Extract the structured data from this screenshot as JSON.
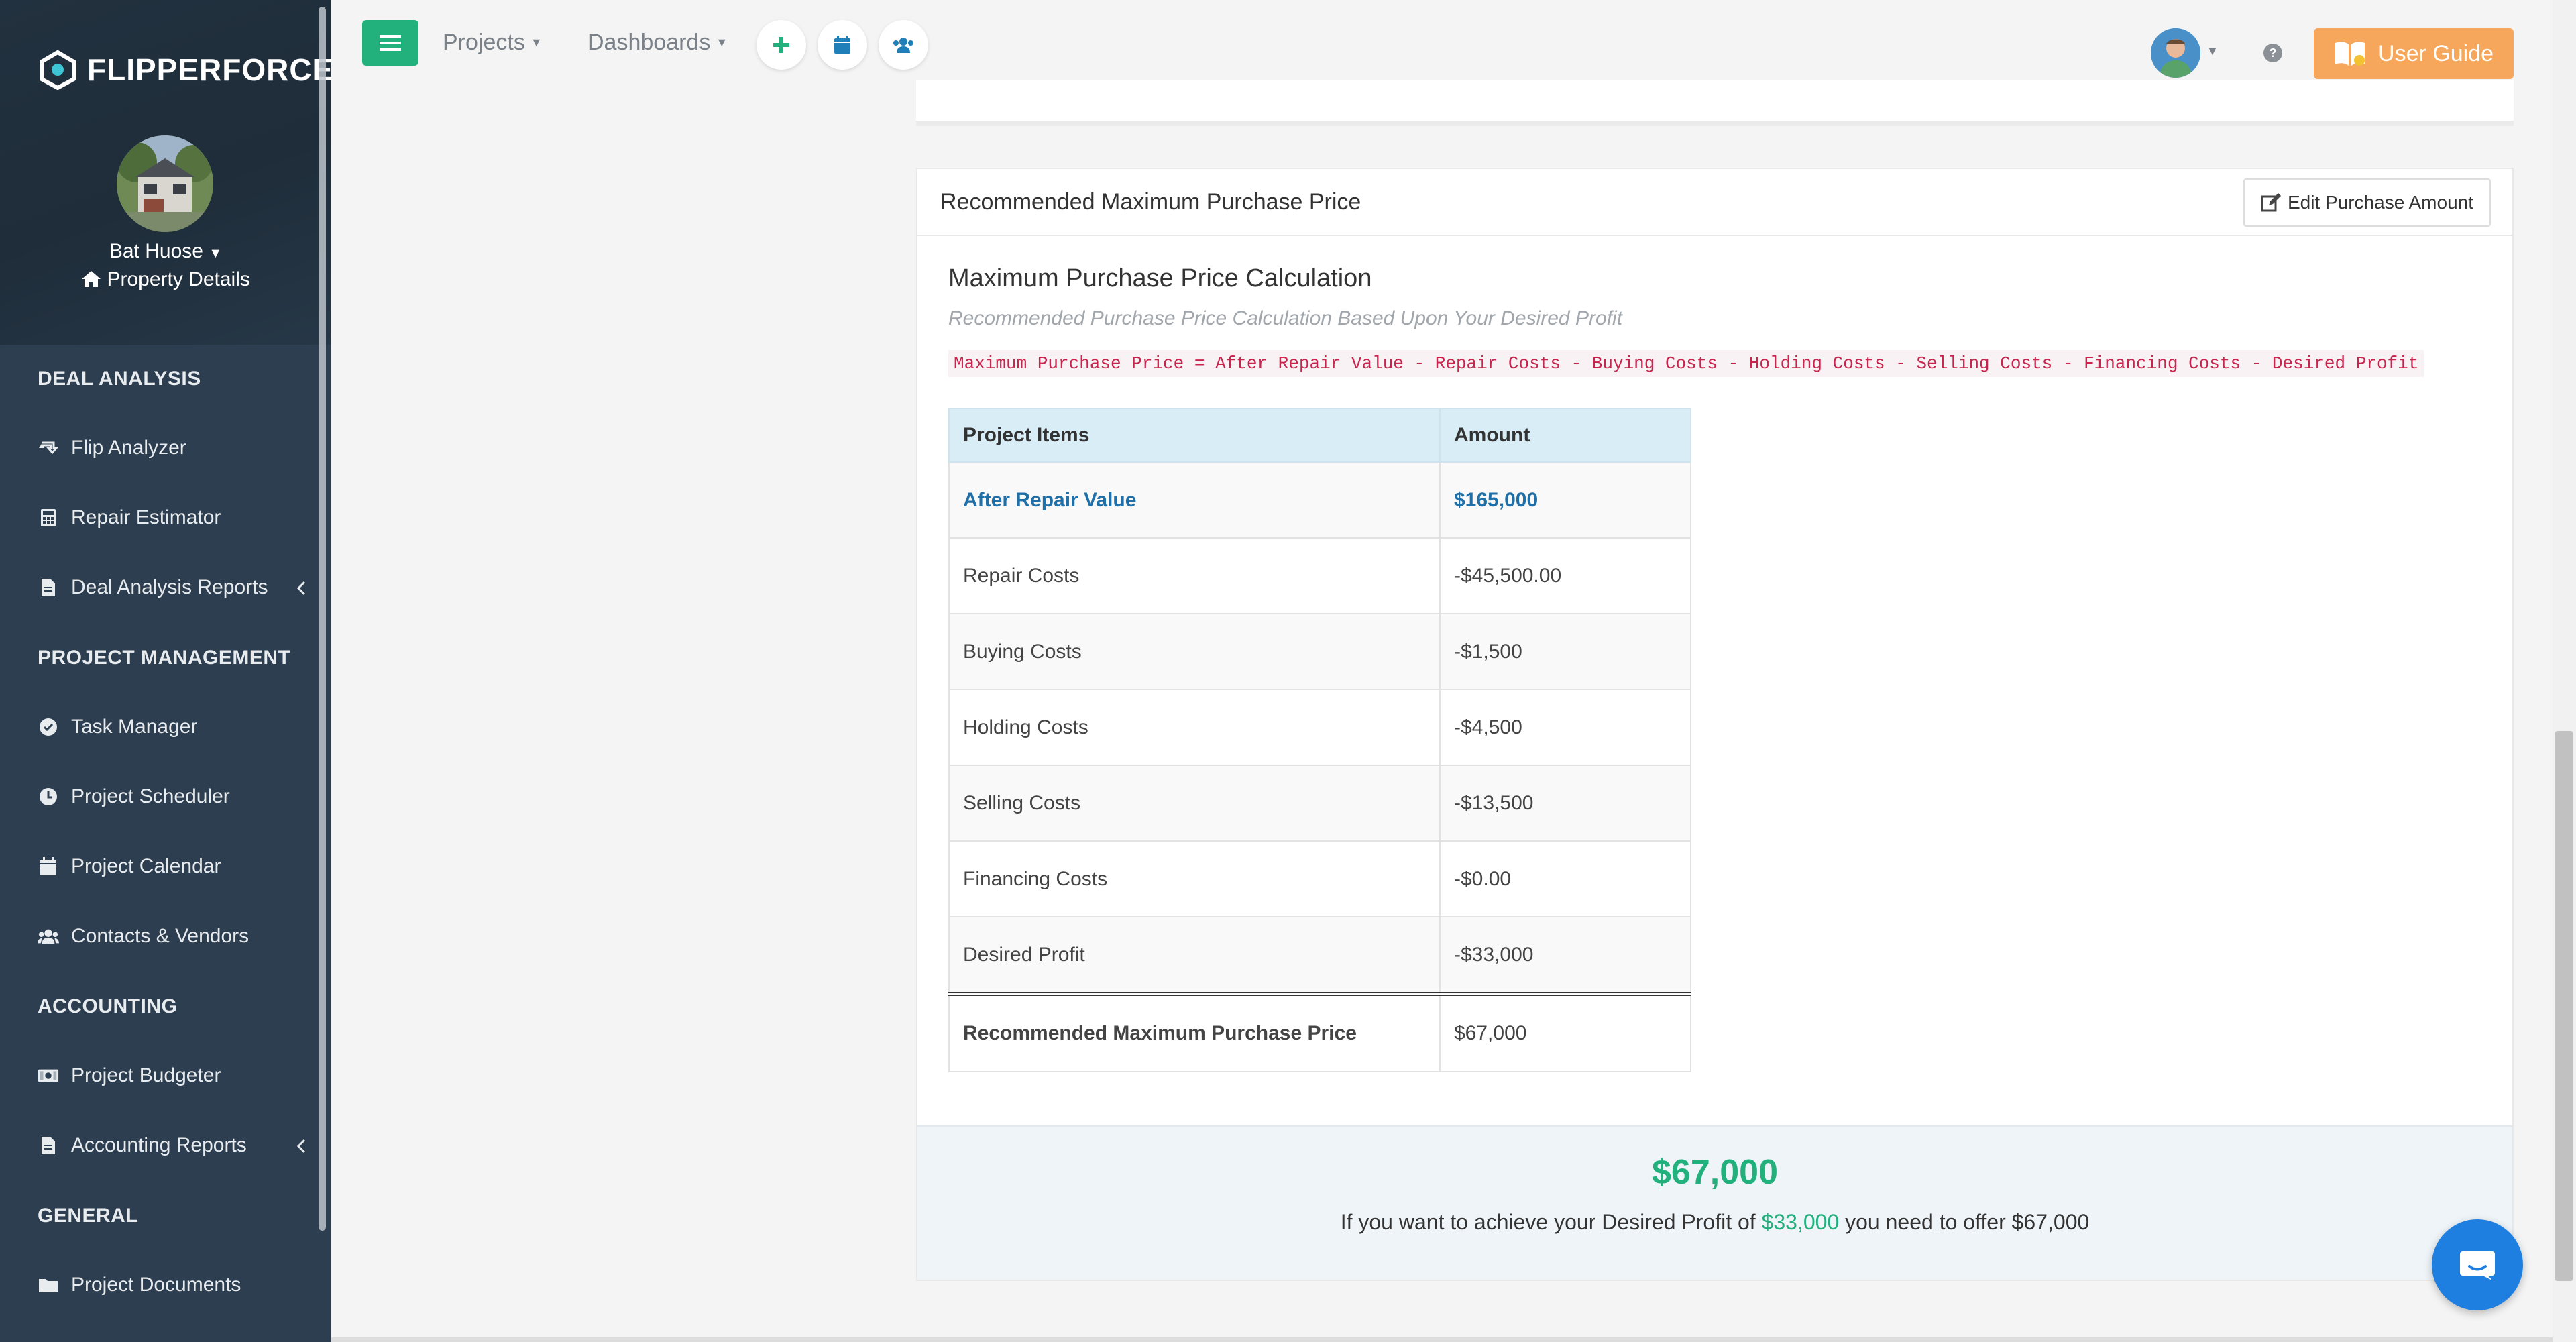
{
  "sidebar": {
    "brand": "FLIPPERFORCE",
    "property_name": "Bat Huose",
    "property_link": "Property Details",
    "sections": [
      {
        "title": "DEAL ANALYSIS"
      },
      {
        "title": "PROJECT MANAGEMENT"
      },
      {
        "title": "ACCOUNTING"
      },
      {
        "title": "GENERAL"
      }
    ],
    "items": [
      {
        "label": "Flip Analyzer",
        "icon": "retweet-icon"
      },
      {
        "label": "Repair Estimator",
        "icon": "calculator-icon"
      },
      {
        "label": "Deal Analysis Reports",
        "icon": "file-icon"
      },
      {
        "label": "Task Manager",
        "icon": "check-circle-icon"
      },
      {
        "label": "Project Scheduler",
        "icon": "clock-icon"
      },
      {
        "label": "Project Calendar",
        "icon": "calendar-icon"
      },
      {
        "label": "Contacts & Vendors",
        "icon": "users-icon"
      },
      {
        "label": "Project Budgeter",
        "icon": "money-icon"
      },
      {
        "label": "Accounting Reports",
        "icon": "file-icon"
      },
      {
        "label": "Project Documents",
        "icon": "folder-icon"
      }
    ]
  },
  "topbar": {
    "projects": "Projects",
    "dashboards": "Dashboards",
    "user_guide": "User Guide"
  },
  "card": {
    "title": "Recommended Maximum Purchase Price",
    "edit_button": "Edit Purchase Amount",
    "calc_title": "Maximum Purchase Price Calculation",
    "calc_subtitle": "Recommended Purchase Price Calculation Based Upon Your Desired Profit",
    "formula": "Maximum Purchase Price = After Repair Value - Repair Costs - Buying Costs - Holding Costs - Selling Costs - Financing Costs - Desired Profit",
    "table": {
      "headers": [
        "Project Items",
        "Amount"
      ],
      "rows": [
        {
          "item": "After Repair Value",
          "amount": "$165,000"
        },
        {
          "item": "Repair Costs",
          "amount": "-$45,500.00"
        },
        {
          "item": "Buying Costs",
          "amount": "-$1,500"
        },
        {
          "item": "Holding Costs",
          "amount": "-$4,500"
        },
        {
          "item": "Selling Costs",
          "amount": "-$13,500"
        },
        {
          "item": "Financing Costs",
          "amount": "-$0.00"
        },
        {
          "item": "Desired Profit",
          "amount": "-$33,000"
        }
      ],
      "total": {
        "item": "Recommended Maximum Purchase Price",
        "amount": "$67,000"
      }
    },
    "result": {
      "amount": "$67,000",
      "text_before": "If you want to achieve your Desired Profit of",
      "profit": "$33,000",
      "text_after": "you need to offer $67,000"
    }
  },
  "colors": {
    "sidebar": "#2c3e50",
    "accent_green": "#22b07d",
    "guide_orange": "#f7a75b",
    "link_blue": "#1f6fa8",
    "chat_blue": "#1f7fe0"
  }
}
